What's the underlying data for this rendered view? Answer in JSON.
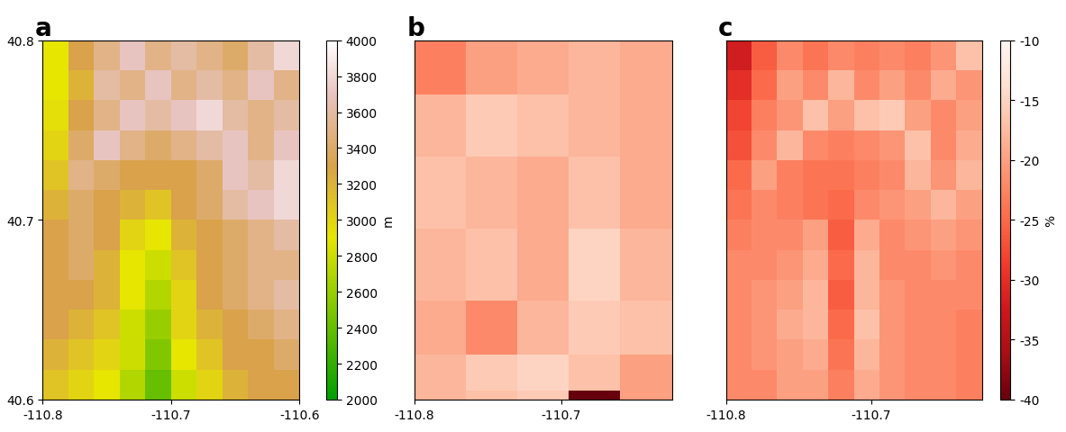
{
  "chart_data": [
    {
      "type": "heatmap",
      "title": "a",
      "xlim": [
        -110.8,
        -110.6
      ],
      "ylim": [
        40.6,
        40.8
      ],
      "xticks": [
        -110.8,
        -110.7,
        -110.6
      ],
      "yticks": [
        40.6,
        40.7,
        40.8
      ],
      "x_edges": [
        -110.8,
        -110.78,
        -110.76,
        -110.74,
        -110.72,
        -110.7,
        -110.68,
        -110.66,
        -110.64,
        -110.62,
        -110.6
      ],
      "y_edges": [
        40.8,
        40.7833,
        40.7667,
        40.75,
        40.7333,
        40.7167,
        40.7,
        40.6833,
        40.6667,
        40.65,
        40.6333,
        40.6167,
        40.6
      ],
      "cells": [
        [
          2900,
          3300,
          3500,
          3700,
          3500,
          3600,
          3500,
          3400,
          3600,
          3800
        ],
        [
          2900,
          3200,
          3600,
          3500,
          3700,
          3500,
          3600,
          3500,
          3700,
          3500
        ],
        [
          2950,
          3300,
          3500,
          3700,
          3600,
          3700,
          3800,
          3600,
          3500,
          3600
        ],
        [
          3000,
          3400,
          3700,
          3500,
          3400,
          3500,
          3600,
          3700,
          3500,
          3700
        ],
        [
          3100,
          3500,
          3400,
          3300,
          3300,
          3300,
          3400,
          3700,
          3600,
          3800
        ],
        [
          3200,
          3400,
          3300,
          3200,
          3100,
          3300,
          3400,
          3600,
          3700,
          3800
        ],
        [
          3300,
          3400,
          3300,
          3000,
          2900,
          3200,
          3300,
          3400,
          3500,
          3600
        ],
        [
          3300,
          3400,
          3200,
          2900,
          2800,
          3100,
          3300,
          3400,
          3500,
          3500
        ],
        [
          3300,
          3300,
          3200,
          2900,
          2700,
          3000,
          3300,
          3400,
          3500,
          3600
        ],
        [
          3300,
          3200,
          3100,
          2800,
          2600,
          3000,
          3200,
          3300,
          3400,
          3500
        ],
        [
          3200,
          3100,
          3000,
          2800,
          2500,
          2900,
          3100,
          3300,
          3300,
          3400
        ],
        [
          3100,
          3000,
          2900,
          2700,
          2400,
          2800,
          3000,
          3200,
          3300,
          3300
        ]
      ],
      "colorbar_range": [
        2000,
        4000
      ],
      "colorbar_ticks": [
        2000,
        2200,
        2400,
        2600,
        2800,
        3000,
        3200,
        3400,
        3600,
        3800,
        4000
      ],
      "colorbar_label": "m"
    },
    {
      "type": "heatmap",
      "title": "b",
      "tick_labels": "x",
      "xlim": [
        -110.8,
        -110.624
      ],
      "ylim": [
        40.6,
        40.8
      ],
      "xticks": [
        -110.8,
        -110.7
      ],
      "x_edges": [
        -110.8,
        -110.765,
        -110.73,
        -110.695,
        -110.66,
        -110.624
      ],
      "y_edges": [
        40.8,
        40.77,
        40.735,
        40.695,
        40.655,
        40.625,
        40.605,
        40.6
      ],
      "cells": [
        [
          -23,
          -20,
          -19,
          -18,
          -19
        ],
        [
          -18,
          -16,
          -17,
          -18,
          -19
        ],
        [
          -17,
          -18,
          -19,
          -17,
          -19
        ],
        [
          -18,
          -17,
          -19,
          -15,
          -18
        ],
        [
          -19,
          -22,
          -18,
          -16,
          -17
        ],
        [
          -18,
          -16,
          -15,
          -17,
          -20
        ],
        [
          -18,
          -17,
          -16,
          -40,
          -20
        ]
      ],
      "colorbar_range": [
        -40,
        -10
      ]
    },
    {
      "type": "heatmap",
      "title": "c",
      "tick_labels": "x",
      "xlim": [
        -110.8,
        -110.624
      ],
      "ylim": [
        40.6,
        40.8
      ],
      "xticks": [
        -110.8,
        -110.7
      ],
      "x_edges": [
        -110.8,
        -110.7824,
        -110.7648,
        -110.7472,
        -110.7296,
        -110.712,
        -110.6944,
        -110.6768,
        -110.6592,
        -110.6416,
        -110.624
      ],
      "y_edges": [
        40.8,
        40.7833,
        40.7667,
        40.75,
        40.7333,
        40.7167,
        40.7,
        40.6833,
        40.6667,
        40.65,
        40.6333,
        40.6167,
        40.6
      ],
      "cells": [
        [
          -32,
          -26,
          -22,
          -24,
          -22,
          -23,
          -22,
          -23,
          -21,
          -17
        ],
        [
          -30,
          -25,
          -20,
          -22,
          -18,
          -22,
          -20,
          -22,
          -19,
          -21
        ],
        [
          -28,
          -23,
          -21,
          -17,
          -20,
          -17,
          -16,
          -20,
          -22,
          -20
        ],
        [
          -27,
          -22,
          -18,
          -22,
          -23,
          -22,
          -21,
          -17,
          -22,
          -19
        ],
        [
          -25,
          -20,
          -23,
          -24,
          -24,
          -23,
          -22,
          -18,
          -21,
          -18
        ],
        [
          -24,
          -22,
          -23,
          -24,
          -25,
          -22,
          -21,
          -20,
          -18,
          -20
        ],
        [
          -23,
          -22,
          -22,
          -20,
          -26,
          -19,
          -22,
          -21,
          -20,
          -21
        ],
        [
          -22,
          -22,
          -21,
          -19,
          -25,
          -18,
          -22,
          -22,
          -21,
          -22
        ],
        [
          -22,
          -21,
          -20,
          -18,
          -26,
          -18,
          -21,
          -22,
          -22,
          -22
        ],
        [
          -22,
          -21,
          -19,
          -18,
          -25,
          -17,
          -21,
          -22,
          -22,
          -23
        ],
        [
          -22,
          -21,
          -20,
          -19,
          -24,
          -18,
          -21,
          -22,
          -22,
          -23
        ],
        [
          -22,
          -22,
          -20,
          -20,
          -23,
          -19,
          -21,
          -22,
          -22,
          -23
        ]
      ],
      "colorbar_range": [
        -40,
        -10
      ],
      "colorbar_ticks": [
        -40,
        -35,
        -30,
        -25,
        -20,
        -15,
        -10
      ],
      "colorbar_label": "%"
    }
  ]
}
